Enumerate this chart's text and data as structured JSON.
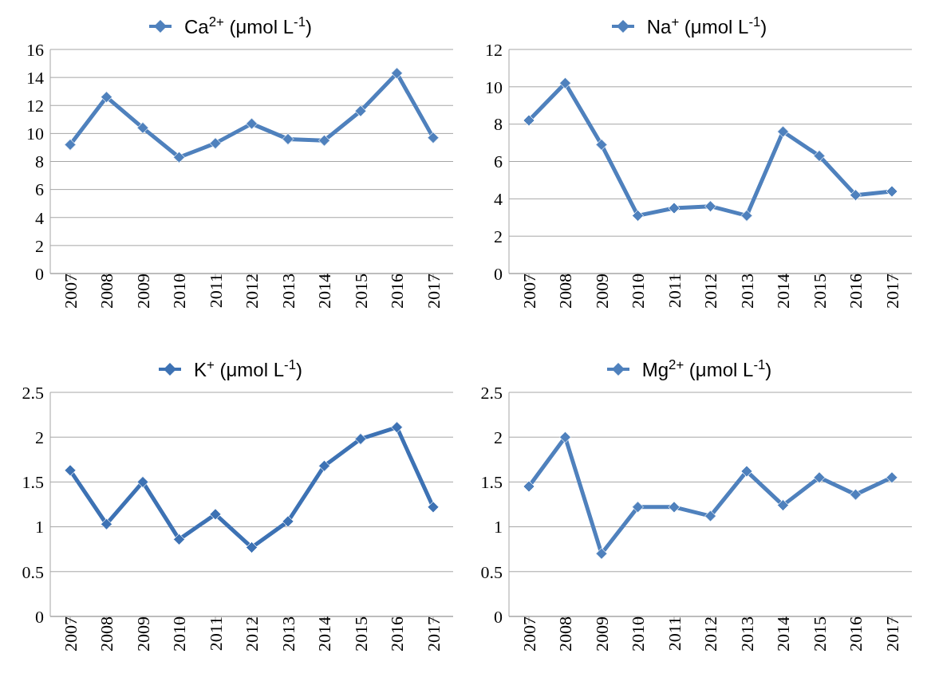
{
  "chart_data": [
    {
      "type": "line",
      "categories": [
        "2007",
        "2008",
        "2009",
        "2010",
        "2011",
        "2012",
        "2013",
        "2014",
        "2015",
        "2016",
        "2017"
      ],
      "series": [
        {
          "name": "Ca$^{2+}$ (μmol L$^{-1}$)",
          "color": "#4f81bd",
          "values": [
            9.2,
            12.6,
            10.4,
            8.3,
            9.3,
            10.7,
            9.6,
            9.5,
            11.6,
            14.3,
            9.7
          ]
        }
      ],
      "ylim": [
        0,
        16
      ],
      "yticks": [
        0,
        2,
        4,
        6,
        8,
        10,
        12,
        14,
        16
      ],
      "grid": "y",
      "legend": "top",
      "marker": "diamond",
      "line_style": "solid"
    },
    {
      "type": "line",
      "categories": [
        "2007",
        "2008",
        "2009",
        "2010",
        "2011",
        "2012",
        "2013",
        "2014",
        "2015",
        "2016",
        "2017"
      ],
      "series": [
        {
          "name": "Na$^{+}$ (μmol L$^{-1}$)",
          "color": "#4f81bd",
          "values": [
            8.2,
            10.2,
            6.9,
            3.1,
            3.5,
            3.6,
            3.1,
            7.6,
            6.3,
            4.2,
            4.4
          ]
        }
      ],
      "ylim": [
        0,
        12
      ],
      "yticks": [
        0,
        2,
        4,
        6,
        8,
        10,
        12
      ],
      "grid": "y",
      "legend": "top",
      "marker": "diamond",
      "line_style": "solid"
    },
    {
      "type": "line",
      "categories": [
        "2007",
        "2008",
        "2009",
        "2010",
        "2011",
        "2012",
        "2013",
        "2014",
        "2015",
        "2016",
        "2017"
      ],
      "series": [
        {
          "name": "K$^{+}$ (μmol L$^{-1}$)",
          "color": "#3d72b4",
          "values": [
            1.63,
            1.03,
            1.5,
            0.86,
            1.14,
            0.77,
            1.06,
            1.68,
            1.98,
            2.11,
            1.22
          ]
        }
      ],
      "ylim": [
        0,
        2.5
      ],
      "yticks": [
        0,
        0.5,
        1,
        1.5,
        2,
        2.5
      ],
      "grid": "y",
      "legend": "top",
      "marker": "diamond",
      "line_style": "solid"
    },
    {
      "type": "line",
      "categories": [
        "2007",
        "2008",
        "2009",
        "2010",
        "2011",
        "2012",
        "2013",
        "2014",
        "2015",
        "2016",
        "2017"
      ],
      "series": [
        {
          "name": "Mg$^{2+}$ (μmol L$^{-1}$)",
          "color": "#4f81bd",
          "values": [
            1.45,
            2.0,
            0.7,
            1.22,
            1.22,
            1.12,
            1.62,
            1.24,
            1.55,
            1.36,
            1.55
          ]
        }
      ],
      "ylim": [
        0,
        2.5
      ],
      "yticks": [
        0,
        0.5,
        1,
        1.5,
        2,
        2.5
      ],
      "grid": "y",
      "legend": "top",
      "marker": "diamond",
      "line_style": "solid"
    }
  ]
}
